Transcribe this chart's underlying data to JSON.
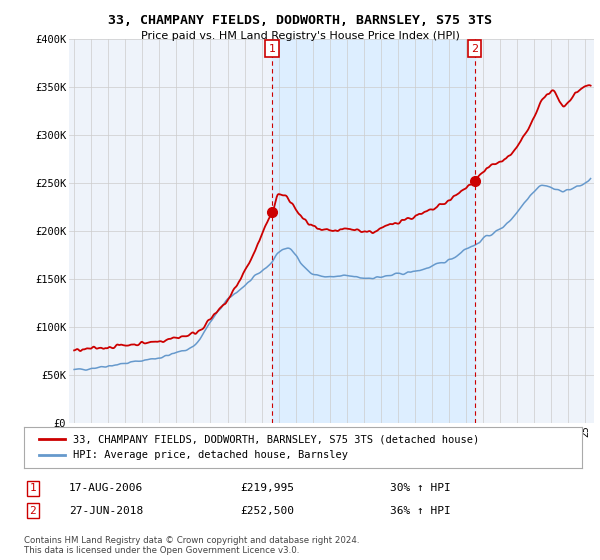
{
  "title": "33, CHAMPANY FIELDS, DODWORTH, BARNSLEY, S75 3TS",
  "subtitle": "Price paid vs. HM Land Registry's House Price Index (HPI)",
  "legend_line1": "33, CHAMPANY FIELDS, DODWORTH, BARNSLEY, S75 3TS (detached house)",
  "legend_line2": "HPI: Average price, detached house, Barnsley",
  "sale1_date": "17-AUG-2006",
  "sale1_price": "£219,995",
  "sale1_hpi": "30% ↑ HPI",
  "sale1_year": 2006.62,
  "sale1_value": 219995,
  "sale2_date": "27-JUN-2018",
  "sale2_price": "£252,500",
  "sale2_hpi": "36% ↑ HPI",
  "sale2_year": 2018.49,
  "sale2_value": 252500,
  "footer": "Contains HM Land Registry data © Crown copyright and database right 2024.\nThis data is licensed under the Open Government Licence v3.0.",
  "red_color": "#cc0000",
  "blue_color": "#6699cc",
  "shade_color": "#ddeeff",
  "grid_color": "#cccccc",
  "background_color": "#ffffff",
  "plot_bg_color": "#eef3fa",
  "ylim": [
    0,
    400000
  ],
  "xlim_start": 1994.7,
  "xlim_end": 2025.5
}
